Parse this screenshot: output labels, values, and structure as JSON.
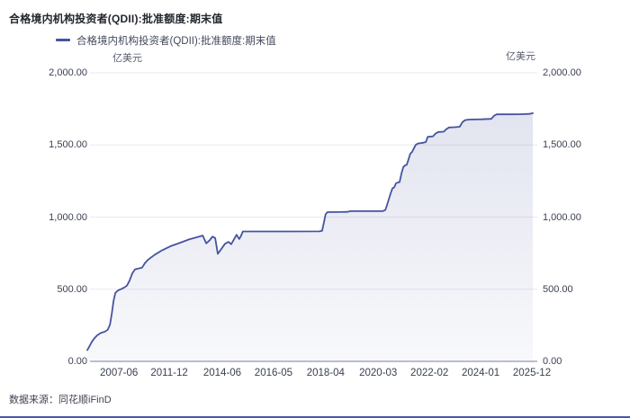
{
  "page": {
    "title": "合格境内机构投资者(QDII):批准额度:期末值",
    "source": "数据来源：同花顺iFinD"
  },
  "legend": {
    "label": "合格境内机构投资者(QDII):批准额度:期末值"
  },
  "axis": {
    "unit_left": "亿美元",
    "unit_right": "亿美元"
  },
  "colors": {
    "line": "#4553a0",
    "area_top": "rgba(76,88,158,0.16)",
    "area_bottom": "rgba(76,88,158,0.04)",
    "grid": "#e9e9ef",
    "baseline": "#a6abc2",
    "accent": "#4a57a7"
  },
  "chart_data": {
    "type": "area",
    "title": "合格境内机构投资者(QDII):批准额度:期末值",
    "ylabel": "亿美元",
    "ylim": [
      0,
      2000
    ],
    "grid": "horizontal",
    "legend_position": "top",
    "y_ticks": [
      {
        "value": 0,
        "label": "0.00"
      },
      {
        "value": 500,
        "label": "500.00"
      },
      {
        "value": 1000,
        "label": "1,000.00"
      },
      {
        "value": 1500,
        "label": "1,500.00"
      },
      {
        "value": 2000,
        "label": "2,000.00"
      }
    ],
    "x_ticks": [
      {
        "pos": 0.071,
        "label": "2007-06"
      },
      {
        "pos": 0.184,
        "label": "2011-12"
      },
      {
        "pos": 0.303,
        "label": "2014-06"
      },
      {
        "pos": 0.418,
        "label": "2016-05"
      },
      {
        "pos": 0.535,
        "label": "2018-04"
      },
      {
        "pos": 0.653,
        "label": "2020-03"
      },
      {
        "pos": 0.768,
        "label": "2022-02"
      },
      {
        "pos": 0.883,
        "label": "2024-01"
      },
      {
        "pos": 0.998,
        "label": "2025-12"
      }
    ],
    "series": [
      {
        "name": "合格境内机构投资者(QDII):批准额度:期末值",
        "points": [
          [
            0.0,
            78
          ],
          [
            0.004,
            100
          ],
          [
            0.01,
            135
          ],
          [
            0.016,
            160
          ],
          [
            0.022,
            180
          ],
          [
            0.03,
            196
          ],
          [
            0.04,
            207
          ],
          [
            0.046,
            220
          ],
          [
            0.051,
            255
          ],
          [
            0.055,
            330
          ],
          [
            0.059,
            420
          ],
          [
            0.063,
            475
          ],
          [
            0.069,
            492
          ],
          [
            0.075,
            500
          ],
          [
            0.083,
            512
          ],
          [
            0.089,
            525
          ],
          [
            0.095,
            560
          ],
          [
            0.101,
            610
          ],
          [
            0.107,
            638
          ],
          [
            0.123,
            650
          ],
          [
            0.129,
            680
          ],
          [
            0.135,
            700
          ],
          [
            0.141,
            715
          ],
          [
            0.152,
            740
          ],
          [
            0.168,
            770
          ],
          [
            0.188,
            800
          ],
          [
            0.208,
            822
          ],
          [
            0.228,
            845
          ],
          [
            0.248,
            862
          ],
          [
            0.259,
            872
          ],
          [
            0.267,
            818
          ],
          [
            0.275,
            840
          ],
          [
            0.281,
            865
          ],
          [
            0.287,
            855
          ],
          [
            0.293,
            745
          ],
          [
            0.301,
            780
          ],
          [
            0.309,
            815
          ],
          [
            0.317,
            828
          ],
          [
            0.323,
            812
          ],
          [
            0.331,
            855
          ],
          [
            0.335,
            877
          ],
          [
            0.341,
            848
          ],
          [
            0.345,
            870
          ],
          [
            0.349,
            900
          ],
          [
            0.39,
            900
          ],
          [
            0.451,
            900
          ],
          [
            0.521,
            901
          ],
          [
            0.527,
            905
          ],
          [
            0.531,
            960
          ],
          [
            0.535,
            1020
          ],
          [
            0.539,
            1034
          ],
          [
            0.562,
            1035
          ],
          [
            0.584,
            1036
          ],
          [
            0.59,
            1041
          ],
          [
            0.632,
            1041
          ],
          [
            0.663,
            1041
          ],
          [
            0.669,
            1050
          ],
          [
            0.673,
            1085
          ],
          [
            0.677,
            1125
          ],
          [
            0.681,
            1165
          ],
          [
            0.685,
            1200
          ],
          [
            0.689,
            1207
          ],
          [
            0.693,
            1235
          ],
          [
            0.701,
            1243
          ],
          [
            0.705,
            1300
          ],
          [
            0.709,
            1345
          ],
          [
            0.713,
            1358
          ],
          [
            0.717,
            1362
          ],
          [
            0.721,
            1400
          ],
          [
            0.725,
            1440
          ],
          [
            0.729,
            1452
          ],
          [
            0.737,
            1500
          ],
          [
            0.742,
            1510
          ],
          [
            0.754,
            1515
          ],
          [
            0.76,
            1520
          ],
          [
            0.764,
            1556
          ],
          [
            0.776,
            1560
          ],
          [
            0.782,
            1580
          ],
          [
            0.788,
            1590
          ],
          [
            0.8,
            1592
          ],
          [
            0.806,
            1610
          ],
          [
            0.812,
            1621
          ],
          [
            0.824,
            1623
          ],
          [
            0.836,
            1626
          ],
          [
            0.842,
            1658
          ],
          [
            0.848,
            1672
          ],
          [
            0.857,
            1676
          ],
          [
            0.885,
            1678
          ],
          [
            0.907,
            1681
          ],
          [
            0.913,
            1702
          ],
          [
            0.919,
            1712
          ],
          [
            0.945,
            1712
          ],
          [
            0.972,
            1713
          ],
          [
            0.992,
            1715
          ],
          [
            1.0,
            1720
          ]
        ]
      }
    ]
  }
}
